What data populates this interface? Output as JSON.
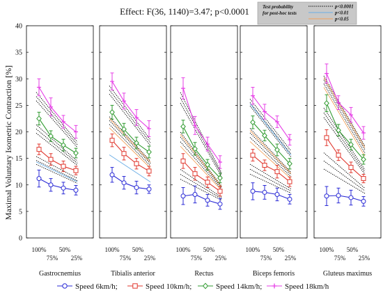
{
  "chart_data": {
    "type": "line",
    "title": "Effect: F(36, 1140)=3.47; p<0.0001",
    "ylabel": "Maximal Voluntary Isometric Contraction [%]",
    "ylim": [
      0,
      40
    ],
    "yticks": [
      "0",
      "5",
      "10",
      "15",
      "20",
      "25",
      "30",
      "35",
      "40"
    ],
    "x_ticks": [
      "100%",
      "75%",
      "50%",
      "25%"
    ],
    "grid": false,
    "panels": [
      {
        "muscle": "Gastrocnemius",
        "series": [
          {
            "values": [
              11.2,
              10.0,
              9.4,
              9.0
            ],
            "err": [
              1.6,
              1.2,
              1.1,
              0.9
            ]
          },
          {
            "values": [
              16.7,
              14.8,
              13.5,
              12.7
            ],
            "err": [
              1.0,
              1.1,
              1.0,
              0.8
            ]
          },
          {
            "values": [
              22.5,
              19.2,
              17.5,
              16.0
            ],
            "err": [
              1.2,
              1.0,
              1.1,
              0.9
            ]
          },
          {
            "values": [
              28.4,
              24.7,
              21.9,
              20.0
            ],
            "err": [
              1.6,
              1.7,
              1.2,
              1.2
            ]
          }
        ]
      },
      {
        "muscle": "Tibialis anterior",
        "series": [
          {
            "values": [
              11.9,
              10.4,
              9.5,
              9.2
            ],
            "err": [
              1.4,
              1.2,
              1.2,
              0.8
            ]
          },
          {
            "values": [
              18.4,
              15.9,
              14.0,
              12.6
            ],
            "err": [
              1.2,
              1.2,
              1.0,
              0.9
            ]
          },
          {
            "values": [
              23.7,
              20.5,
              17.9,
              16.2
            ],
            "err": [
              1.3,
              1.1,
              1.1,
              1.1
            ]
          },
          {
            "values": [
              29.5,
              25.8,
              22.7,
              20.6
            ],
            "err": [
              1.6,
              1.5,
              1.5,
              1.5
            ]
          }
        ]
      },
      {
        "muscle": "Rectus",
        "series": [
          {
            "values": [
              7.9,
              8.2,
              7.1,
              6.4
            ],
            "err": [
              1.6,
              1.6,
              1.1,
              1.0
            ]
          },
          {
            "values": [
              14.5,
              12.1,
              10.5,
              8.8
            ],
            "err": [
              1.4,
              1.2,
              1.0,
              0.9
            ]
          },
          {
            "values": [
              21.0,
              16.8,
              13.8,
              11.3
            ],
            "err": [
              1.2,
              1.2,
              1.0,
              0.9
            ]
          },
          {
            "values": [
              28.2,
              21.2,
              17.7,
              14.3
            ],
            "err": [
              2.0,
              1.7,
              1.3,
              1.2
            ]
          }
        ]
      },
      {
        "muscle": "Biceps femoris",
        "series": [
          {
            "values": [
              8.8,
              8.6,
              8.2,
              7.3
            ],
            "err": [
              1.6,
              1.3,
              1.2,
              0.9
            ]
          },
          {
            "values": [
              15.6,
              13.7,
              12.5,
              10.6
            ],
            "err": [
              1.1,
              1.0,
              1.2,
              0.9
            ]
          },
          {
            "values": [
              21.8,
              19.3,
              16.6,
              14.0
            ],
            "err": [
              1.2,
              1.0,
              1.1,
              1.0
            ]
          },
          {
            "values": [
              26.8,
              23.8,
              21.9,
              18.5
            ],
            "err": [
              1.6,
              1.4,
              1.1,
              1.0
            ]
          }
        ]
      },
      {
        "muscle": "Gluteus maximus",
        "series": [
          {
            "values": [
              7.9,
              8.0,
              7.6,
              6.9
            ],
            "err": [
              1.8,
              1.4,
              1.4,
              0.9
            ]
          },
          {
            "values": [
              18.9,
              15.6,
              13.3,
              11.2
            ],
            "err": [
              1.5,
              1.0,
              1.0,
              0.8
            ]
          },
          {
            "values": [
              25.4,
              20.3,
              17.6,
              14.8
            ],
            "err": [
              1.6,
              1.1,
              1.0,
              0.9
            ]
          },
          {
            "values": [
              31.0,
              25.5,
              23.2,
              19.8
            ],
            "err": [
              1.8,
              1.3,
              1.4,
              1.2
            ]
          }
        ]
      }
    ],
    "legend": {
      "placement": "bottom",
      "entries": [
        {
          "name": "Speed 6km/h;",
          "color": "#2a2ad6"
        },
        {
          "name": "Speed 10km/h;",
          "color": "#e0372e"
        },
        {
          "name": "Speed 14km/h;",
          "color": "#2f9a2f"
        },
        {
          "name": "Speed 18km/h",
          "color": "#e63ee6"
        }
      ]
    },
    "posthoc_legend": {
      "placement": "top-right",
      "title_lines": [
        "Test probability",
        "for post-hoc tests"
      ],
      "entries": [
        {
          "label": "p<0.0001",
          "color": "#000000",
          "style": "dotted"
        },
        {
          "label": "p<0.01",
          "color": "#6aaee6",
          "style": "solid"
        },
        {
          "label": "p<0.05",
          "color": "#f2a15a",
          "style": "solid"
        }
      ]
    }
  }
}
